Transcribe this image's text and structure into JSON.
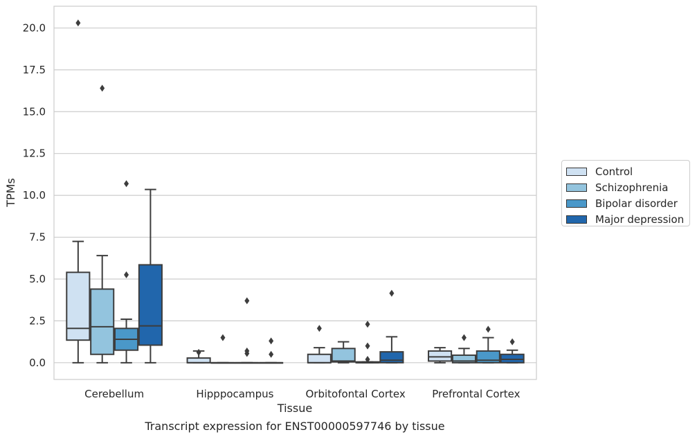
{
  "caption": "Transcript expression for ENST00000597746 by tissue",
  "chart_data": {
    "type": "box",
    "xlabel": "Tissue",
    "ylabel": "TPMs",
    "ylim": [
      -1.0,
      21.3
    ],
    "yticks": [
      "0.0",
      "2.5",
      "5.0",
      "7.5",
      "10.0",
      "12.5",
      "15.0",
      "17.5",
      "20.0"
    ],
    "ytick_values": [
      0,
      2.5,
      5,
      7.5,
      10,
      12.5,
      15,
      17.5,
      20
    ],
    "categories": [
      "Cerebellum",
      "Hipppocampus",
      "Orbitofontal Cortex",
      "Prefrontal Cortex"
    ],
    "grid": true,
    "legend_position": "right",
    "series": [
      {
        "name": "Control",
        "color": "#cfe1f2",
        "boxes": [
          {
            "whislo": 0.0,
            "q1": 1.35,
            "med": 2.05,
            "q3": 5.4,
            "whishi": 7.25,
            "fliers": [
              20.3
            ]
          },
          {
            "whislo": 0.0,
            "q1": 0.0,
            "med": 0.0,
            "q3": 0.28,
            "whishi": 0.7,
            "fliers": [
              0.62
            ]
          },
          {
            "whislo": 0.0,
            "q1": 0.0,
            "med": 0.0,
            "q3": 0.5,
            "whishi": 0.9,
            "fliers": [
              2.05
            ]
          },
          {
            "whislo": 0.0,
            "q1": 0.1,
            "med": 0.35,
            "q3": 0.7,
            "whishi": 0.9,
            "fliers": []
          }
        ]
      },
      {
        "name": "Schizophrenia",
        "color": "#93c4de",
        "boxes": [
          {
            "whislo": 0.0,
            "q1": 0.5,
            "med": 2.15,
            "q3": 4.4,
            "whishi": 6.4,
            "fliers": [
              16.4
            ]
          },
          {
            "whislo": 0.0,
            "q1": 0.0,
            "med": 0.0,
            "q3": 0.0,
            "whishi": 0.0,
            "fliers": [
              1.5
            ]
          },
          {
            "whislo": 0.0,
            "q1": 0.05,
            "med": 0.1,
            "q3": 0.85,
            "whishi": 1.25,
            "fliers": []
          },
          {
            "whislo": 0.0,
            "q1": 0.0,
            "med": 0.1,
            "q3": 0.45,
            "whishi": 0.85,
            "fliers": [
              1.5
            ]
          }
        ]
      },
      {
        "name": "Bipolar disorder",
        "color": "#4a98c9",
        "boxes": [
          {
            "whislo": 0.0,
            "q1": 0.75,
            "med": 1.4,
            "q3": 2.05,
            "whishi": 2.6,
            "fliers": [
              10.7,
              5.25
            ]
          },
          {
            "whislo": 0.0,
            "q1": 0.0,
            "med": 0.0,
            "q3": 0.0,
            "whishi": 0.0,
            "fliers": [
              3.7,
              0.7,
              0.55
            ]
          },
          {
            "whislo": 0.0,
            "q1": 0.0,
            "med": 0.0,
            "q3": 0.05,
            "whishi": 0.05,
            "fliers": [
              2.3,
              1.0,
              0.2
            ]
          },
          {
            "whislo": 0.0,
            "q1": 0.0,
            "med": 0.15,
            "q3": 0.7,
            "whishi": 1.5,
            "fliers": [
              2.0
            ]
          }
        ]
      },
      {
        "name": "Major depression",
        "color": "#2166ac",
        "boxes": [
          {
            "whislo": 0.0,
            "q1": 1.05,
            "med": 2.2,
            "q3": 5.85,
            "whishi": 10.35,
            "fliers": []
          },
          {
            "whislo": 0.0,
            "q1": 0.0,
            "med": 0.0,
            "q3": 0.0,
            "whishi": 0.0,
            "fliers": [
              1.3,
              0.5
            ]
          },
          {
            "whislo": 0.0,
            "q1": 0.0,
            "med": 0.15,
            "q3": 0.65,
            "whishi": 1.55,
            "fliers": [
              4.15
            ]
          },
          {
            "whislo": 0.0,
            "q1": 0.0,
            "med": 0.2,
            "q3": 0.5,
            "whishi": 0.75,
            "fliers": [
              1.25
            ]
          }
        ]
      }
    ]
  }
}
